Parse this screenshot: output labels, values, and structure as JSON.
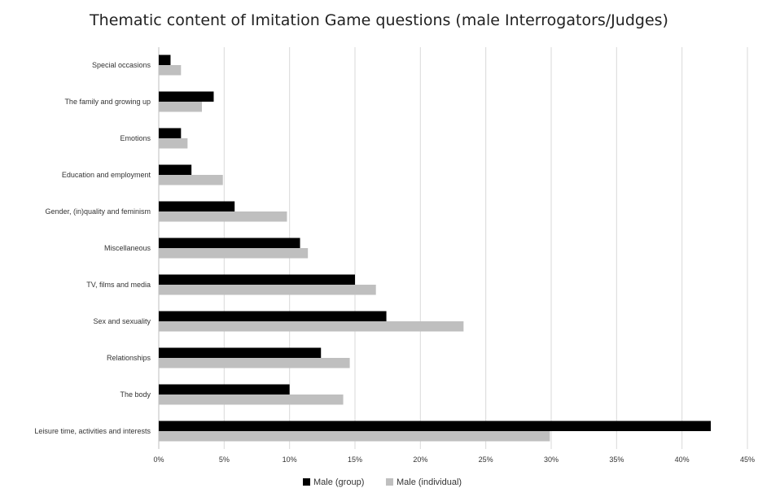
{
  "chart_data": {
    "type": "bar",
    "orientation": "horizontal",
    "title": "Thematic content of Imitation Game questions (male Interrogators/Judges)",
    "xlabel": "",
    "ylabel": "",
    "xlim": [
      0,
      45
    ],
    "x_ticks": [
      "0%",
      "5%",
      "10%",
      "15%",
      "20%",
      "25%",
      "30%",
      "35%",
      "40%",
      "45%"
    ],
    "grid": "vertical",
    "legend_position": "bottom",
    "categories": [
      "Special occasions",
      "The family and growing up",
      "Emotions",
      "Education and employment",
      "Gender, (in)quality and feminism",
      "Miscellaneous",
      "TV, films and media",
      "Sex and sexuality",
      "Relationships",
      "The body",
      "Leisure time, activities and interests"
    ],
    "series": [
      {
        "name": "Male (group)",
        "color": "#000000",
        "values": [
          0.9,
          4.2,
          1.7,
          2.5,
          5.8,
          10.8,
          15.0,
          17.4,
          12.4,
          10.0,
          42.2
        ]
      },
      {
        "name": "Male (individual)",
        "color": "#bfbfbf",
        "values": [
          1.7,
          3.3,
          2.2,
          4.9,
          9.8,
          11.4,
          16.6,
          23.3,
          14.6,
          14.1,
          29.9
        ]
      }
    ]
  }
}
